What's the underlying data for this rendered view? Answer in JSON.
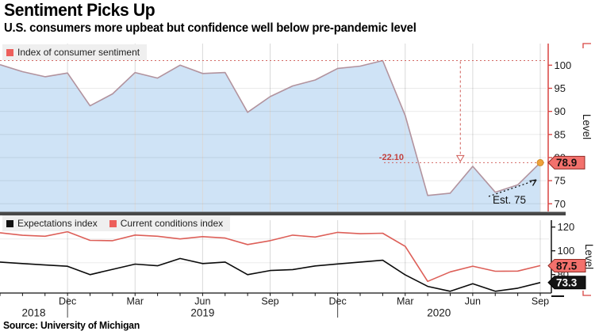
{
  "header": {
    "title": "Sentiment Picks Up",
    "subtitle": "U.S. consumers more upbeat but confidence well below pre-pandemic level"
  },
  "source": "Source: University of Michigan",
  "colors": {
    "accent_red": "#d84340",
    "annotation_red": "#cf5a55",
    "drop_label_red": "#c2413e",
    "badge_red_fill": "#f3716c",
    "badge_red_stroke": "#8f2a24",
    "badge_black_fill": "#141414",
    "area_fill": "#cfe3f6",
    "sentiment_line": "#b2939e",
    "expectations_line": "#0a0a0a",
    "conditions_line": "#dd5f58",
    "estimate_dot": "#efa23b",
    "divider": "#484848",
    "legend_bg": "#efefef",
    "grid_vertical": "#d9d9d9"
  },
  "xaxis": {
    "months": [
      "Sep '18",
      "Oct '18",
      "Nov '18",
      "Dec '18",
      "Jan '19",
      "Feb '19",
      "Mar '19",
      "Apr '19",
      "May '19",
      "Jun '19",
      "Jul '19",
      "Aug '19",
      "Sep '19",
      "Oct '19",
      "Nov '19",
      "Dec '19",
      "Jan '20",
      "Feb '20",
      "Mar '20",
      "Apr '20",
      "May '20",
      "Jun '20",
      "Jul '20",
      "Aug '20",
      "Sep '20"
    ],
    "quarter_ticks": [
      {
        "label": "Dec",
        "index": 3
      },
      {
        "label": "Mar",
        "index": 6
      },
      {
        "label": "Jun",
        "index": 9
      },
      {
        "label": "Sep",
        "index": 12
      },
      {
        "label": "Dec",
        "index": 15
      },
      {
        "label": "Mar",
        "index": 18
      },
      {
        "label": "Jun",
        "index": 21
      },
      {
        "label": "Sep",
        "index": 24
      }
    ],
    "year_labels": [
      {
        "label": "2018",
        "index": 1.5
      },
      {
        "label": "2019",
        "index": 9
      },
      {
        "label": "2020",
        "index": 19.5
      }
    ],
    "year_separator_indices": [
      3,
      15
    ]
  },
  "chart_data": [
    {
      "type": "area",
      "name": "index-of-consumer-sentiment",
      "legend": [
        {
          "label": "Index of consumer sentiment",
          "color": "#ed5f5b"
        }
      ],
      "ylabel": "Level",
      "yticks": [
        70,
        75,
        80,
        85,
        90,
        95,
        100
      ],
      "ylim": [
        68.2,
        104.7
      ],
      "values": [
        100.1,
        98.6,
        97.5,
        98.3,
        91.2,
        93.8,
        98.4,
        97.2,
        100.0,
        98.2,
        98.4,
        89.8,
        93.2,
        95.5,
        96.8,
        99.3,
        99.8,
        101.0,
        89.1,
        71.8,
        72.3,
        78.1,
        72.5,
        74.1,
        78.9
      ],
      "end_label": "78.9",
      "annotations": {
        "peak_line_value": 101.0,
        "drop_line_value": 78.9,
        "drop_label": "-22.10",
        "drop_arrow_month_index": 20.45,
        "estimate_label": "Est. 75"
      }
    },
    {
      "type": "line",
      "name": "sentiment-components",
      "legend": [
        {
          "label": "Expectations index",
          "color": "#111111"
        },
        {
          "label": "Current conditions index",
          "color": "#ed5f5b"
        }
      ],
      "ylabel": "Level",
      "yticks": [
        80,
        100,
        120
      ],
      "ylim": [
        64.5,
        125.8
      ],
      "series": [
        {
          "name": "Expectations index",
          "color": "#0a0a0a",
          "values": [
            90.5,
            89.3,
            88.1,
            87.0,
            79.9,
            84.4,
            88.8,
            87.4,
            93.5,
            89.3,
            90.5,
            79.9,
            83.4,
            84.2,
            87.3,
            88.9,
            90.5,
            92.1,
            79.7,
            70.1,
            65.9,
            72.3,
            65.9,
            68.5,
            73.3
          ],
          "end_label": "73.3"
        },
        {
          "name": "Current conditions index",
          "color": "#dd5f58",
          "values": [
            115.2,
            113.1,
            112.3,
            116.1,
            108.8,
            108.5,
            113.3,
            112.3,
            110.0,
            111.9,
            110.7,
            105.3,
            108.5,
            113.2,
            111.6,
            115.5,
            114.4,
            114.8,
            103.7,
            74.3,
            82.3,
            87.1,
            82.8,
            82.9,
            87.5
          ],
          "end_label": "87.5"
        }
      ]
    }
  ]
}
